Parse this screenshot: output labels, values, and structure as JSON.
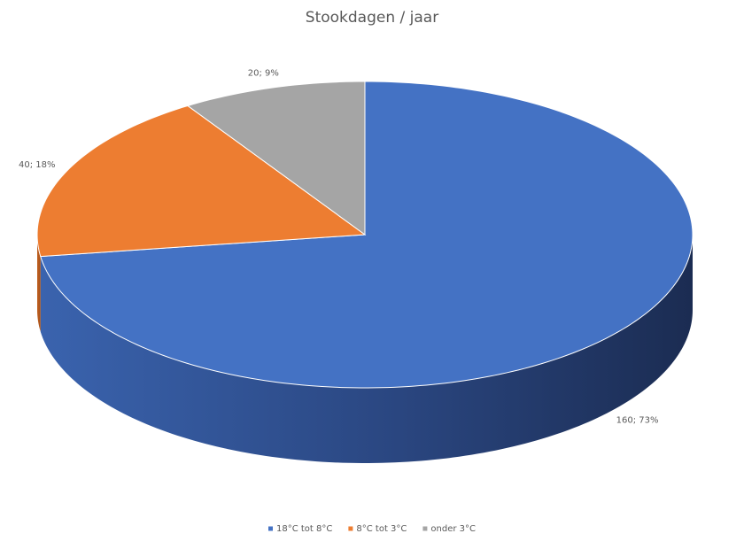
{
  "chart_data": {
    "type": "pie",
    "title": "Stookdagen / jaar",
    "categories": [
      "18°C tot 8°C",
      "8°C tot 3°C",
      "onder 3°C"
    ],
    "values": [
      160,
      40,
      20
    ],
    "value_labels": [
      "160; 73%",
      "40; 18%",
      "20; 9%"
    ],
    "colors": [
      "#4472c4",
      "#ed7d31",
      "#a5a5a5"
    ],
    "legend": "bottom"
  }
}
